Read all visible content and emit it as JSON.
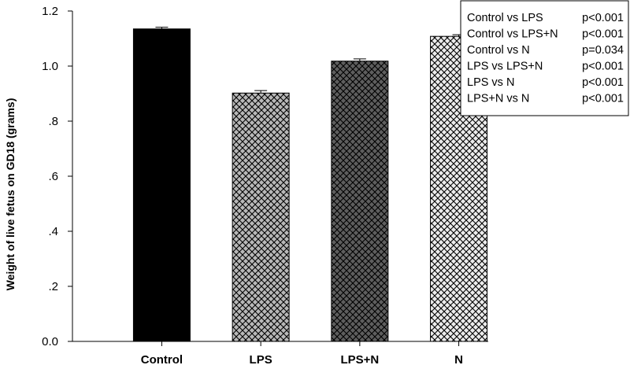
{
  "chart_data": {
    "type": "bar",
    "ylabel": "Weight of live fetus on GD18 (grams)",
    "xlabel": "",
    "ylim": [
      0,
      1.2
    ],
    "y_ticks": [
      {
        "value": 0.0,
        "label": "0.0"
      },
      {
        "value": 0.2,
        "label": ".2"
      },
      {
        "value": 0.4,
        "label": ".4"
      },
      {
        "value": 0.6,
        "label": ".6"
      },
      {
        "value": 0.8,
        "label": ".8"
      },
      {
        "value": 1.0,
        "label": "1.0"
      },
      {
        "value": 1.2,
        "label": "1.2"
      }
    ],
    "categories": [
      "Control",
      "LPS",
      "LPS+N",
      "N"
    ],
    "values": [
      1.135,
      0.902,
      1.018,
      1.108
    ],
    "errors": [
      0.006,
      0.009,
      0.008,
      0.006
    ],
    "fills": [
      "solid-black",
      "hatch-light-gray",
      "hatch-dark-gray",
      "hatch-white"
    ],
    "colors": {
      "solid": "#000000",
      "hatch_light": "#b8b8b8",
      "hatch_dark": "#5e5e5e",
      "hatch_white": "#ececec"
    },
    "grid": false,
    "legend_position": "top-right",
    "annotations": [
      {
        "comparison": "Control vs LPS",
        "p": "p<0.001"
      },
      {
        "comparison": "Control vs LPS+N",
        "p": "p<0.001"
      },
      {
        "comparison": "Control vs N",
        "p": "p=0.034"
      },
      {
        "comparison": "LPS vs LPS+N",
        "p": "p<0.001"
      },
      {
        "comparison": "LPS vs N",
        "p": "p<0.001"
      },
      {
        "comparison": "LPS+N vs N",
        "p": "p<0.001"
      }
    ]
  }
}
